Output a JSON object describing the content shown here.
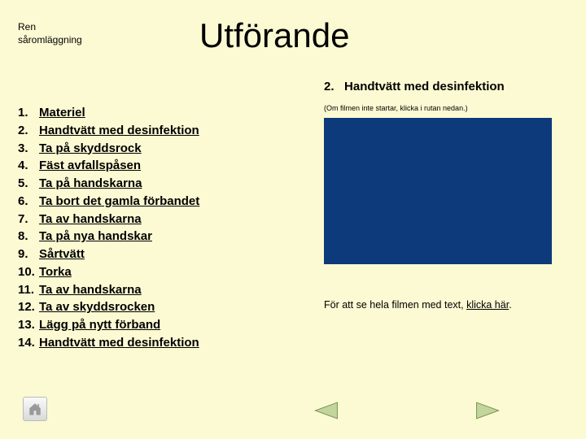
{
  "header": {
    "label_line1": "Ren",
    "label_line2": "såromläggning",
    "title": "Utförande"
  },
  "section": {
    "number": "2.",
    "label": "Handtvätt med desinfektion"
  },
  "hint": "(Om filmen inte startar, klicka i rutan nedan.)",
  "caption_prefix": "För att se hela filmen med text, ",
  "caption_link": "klicka här",
  "caption_suffix": ".",
  "steps": [
    {
      "n": "1.",
      "t": "Materiel"
    },
    {
      "n": "2.",
      "t": "Handtvätt med desinfektion"
    },
    {
      "n": "3.",
      "t": "Ta på skyddsrock"
    },
    {
      "n": "4.",
      "t": "Fäst avfallspåsen"
    },
    {
      "n": "5.",
      "t": "Ta på handskarna"
    },
    {
      "n": "6.",
      "t": "Ta bort det gamla förbandet"
    },
    {
      "n": "7.",
      "t": "Ta av handskarna"
    },
    {
      "n": "8.",
      "t": "Ta på nya handskar"
    },
    {
      "n": "9.",
      "t": "Sårtvätt"
    },
    {
      "n": "10.",
      "t": "Torka"
    },
    {
      "n": "11.",
      "t": "Ta av handskarna"
    },
    {
      "n": "12.",
      "t": "Ta av skyddsrocken"
    },
    {
      "n": "13.",
      "t": "Lägg på nytt förband"
    },
    {
      "n": "14.",
      "t": "Handtvätt med desinfektion"
    }
  ],
  "colors": {
    "video_bg": "#0d3a7a",
    "arrow_fill": "#c3d59e",
    "arrow_stroke": "#6a8a3a",
    "home_fill": "#999999"
  }
}
